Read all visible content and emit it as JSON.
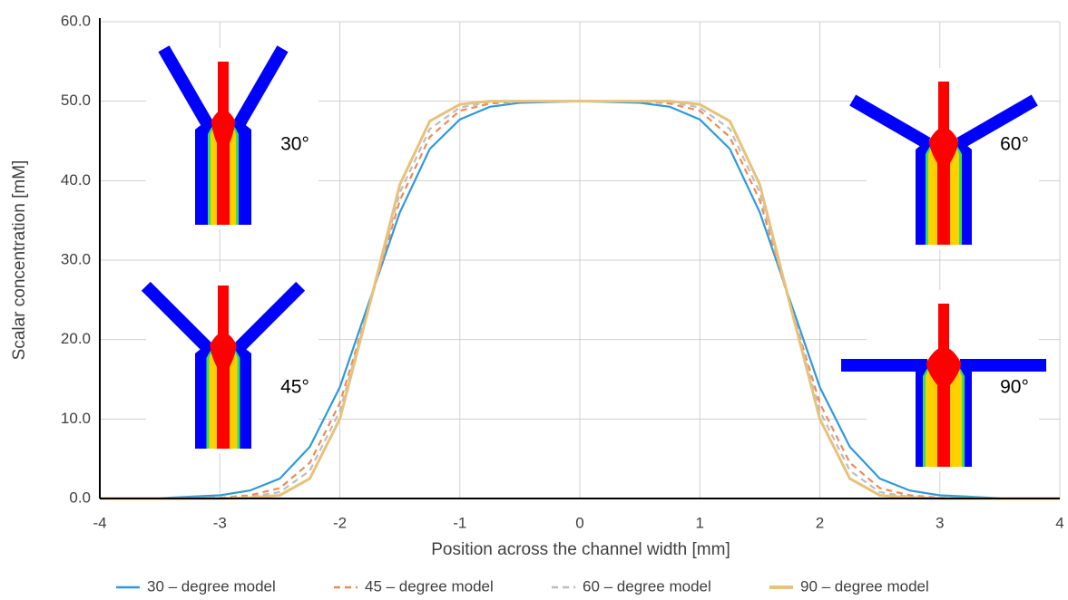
{
  "chart_data": {
    "type": "line",
    "x_label": "Position across the channel width [mm]",
    "y_label": "Scalar concentration [mM]",
    "x": [
      -4,
      -3.5,
      -3,
      -2.75,
      -2.5,
      -2.25,
      -2,
      -1.75,
      -1.5,
      -1.25,
      -1,
      -0.75,
      -0.5,
      0,
      0.5,
      0.75,
      1,
      1.25,
      1.5,
      1.75,
      2,
      2.25,
      2.5,
      2.75,
      3,
      3.5,
      4
    ],
    "series": [
      {
        "name": "30 – degree model",
        "color": "#2e9ad9",
        "dash": "solid",
        "values": [
          0,
          0.05,
          0.4,
          1,
          2.5,
          6.5,
          14,
          25,
          36,
          44,
          47.7,
          49.3,
          49.8,
          50,
          49.8,
          49.3,
          47.7,
          44,
          36,
          25,
          14,
          6.5,
          2.5,
          1,
          0.4,
          0.05,
          0
        ]
      },
      {
        "name": "45 – degree model",
        "color": "#ee8a5a",
        "dash": "dashed",
        "values": [
          0,
          0,
          0.1,
          0.4,
          1.3,
          4.5,
          12,
          24.5,
          37.5,
          45.5,
          48.8,
          49.7,
          50,
          50,
          50,
          49.7,
          48.8,
          45.5,
          37.5,
          24.5,
          12,
          4.5,
          1.3,
          0.4,
          0.1,
          0,
          0
        ]
      },
      {
        "name": "60 – degree model",
        "color": "#bdbdbd",
        "dash": "dashed",
        "values": [
          0,
          0,
          0.05,
          0.2,
          0.8,
          3.5,
          11,
          24.5,
          38.5,
          46.5,
          49.2,
          49.9,
          50,
          50,
          50,
          49.9,
          49.2,
          46.5,
          38.5,
          24.5,
          11,
          3.5,
          0.8,
          0.2,
          0.05,
          0,
          0
        ]
      },
      {
        "name": "90 – degree model",
        "color": "#e6c27a",
        "dash": "double",
        "values": [
          0,
          0,
          0,
          0.1,
          0.4,
          2.5,
          10,
          24.5,
          39.5,
          47.5,
          49.6,
          50,
          50,
          50,
          50,
          50,
          49.6,
          47.5,
          39.5,
          24.5,
          10,
          2.5,
          0.4,
          0.1,
          0,
          0,
          0
        ]
      }
    ],
    "xlim": [
      -4,
      4
    ],
    "xticks": [
      -4,
      -3,
      -2,
      -1,
      0,
      1,
      2,
      3,
      4
    ],
    "ylim": [
      0,
      60
    ],
    "yticks": [
      {
        "value": 0,
        "label": "0.0"
      },
      {
        "value": 10,
        "label": "10.0"
      },
      {
        "value": 20,
        "label": "20.0"
      },
      {
        "value": 30,
        "label": "30.0"
      },
      {
        "value": 40,
        "label": "40.0"
      },
      {
        "value": 50,
        "label": "50.0"
      },
      {
        "value": 60,
        "label": "60.0"
      }
    ],
    "grid": true,
    "legend": "bottom",
    "annotations": [
      "30°",
      "45°",
      "60°",
      "90°"
    ]
  }
}
